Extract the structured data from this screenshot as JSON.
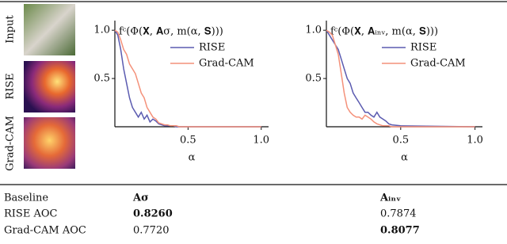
{
  "labels": {
    "input": "Input",
    "rise": "RISE",
    "gradcam": "Grad-CAM"
  },
  "chart_data": [
    {
      "type": "line",
      "title": "fᶜ(Φ(𝐗, 𝐀σ, m(α, 𝐒)))",
      "x_label": "α",
      "x": [
        0,
        0.02,
        0.04,
        0.06,
        0.08,
        0.1,
        0.12,
        0.14,
        0.16,
        0.18,
        0.2,
        0.22,
        0.24,
        0.26,
        0.28,
        0.3,
        0.32,
        0.34,
        0.36,
        0.38,
        0.4,
        0.42,
        0.44,
        0.5,
        1.0
      ],
      "series": [
        {
          "name": "RISE",
          "color": "#5b5bb0",
          "values": [
            1.0,
            0.95,
            0.8,
            0.6,
            0.45,
            0.3,
            0.2,
            0.15,
            0.1,
            0.15,
            0.08,
            0.12,
            0.05,
            0.08,
            0.06,
            0.03,
            0.02,
            0.01,
            0.01,
            0.01,
            0.01,
            0,
            0,
            0,
            0
          ]
        },
        {
          "name": "Grad-CAM",
          "color": "#f4917a",
          "values": [
            1.0,
            0.98,
            0.9,
            0.8,
            0.75,
            0.65,
            0.6,
            0.55,
            0.45,
            0.35,
            0.3,
            0.2,
            0.15,
            0.1,
            0.08,
            0.04,
            0.03,
            0.02,
            0.02,
            0.01,
            0.01,
            0.01,
            0,
            0,
            0
          ]
        }
      ],
      "xlim": [
        0,
        1.05
      ],
      "ylim": [
        0,
        1.1
      ],
      "xticks": [
        0.5,
        {
          "value": 1,
          "label": "1.0"
        }
      ],
      "yticks": [
        0.5,
        {
          "value": 1,
          "label": "1.0"
        }
      ]
    },
    {
      "type": "line",
      "title": "fᶜ(Φ(𝐗, 𝐀ᵢₙᵥ, m(α, 𝐒)))",
      "x_label": "α",
      "x": [
        0,
        0.02,
        0.04,
        0.06,
        0.08,
        0.1,
        0.12,
        0.14,
        0.16,
        0.18,
        0.2,
        0.22,
        0.24,
        0.26,
        0.28,
        0.3,
        0.32,
        0.34,
        0.36,
        0.38,
        0.4,
        0.42,
        0.44,
        0.5,
        1.0
      ],
      "series": [
        {
          "name": "RISE",
          "color": "#5b5bb0",
          "values": [
            1.0,
            0.95,
            0.9,
            0.85,
            0.8,
            0.7,
            0.6,
            0.5,
            0.45,
            0.35,
            0.3,
            0.25,
            0.2,
            0.15,
            0.15,
            0.12,
            0.1,
            0.15,
            0.1,
            0.08,
            0.06,
            0.03,
            0.02,
            0.01,
            0
          ]
        },
        {
          "name": "Grad-CAM",
          "color": "#f4917a",
          "values": [
            1.0,
            0.98,
            0.95,
            0.85,
            0.75,
            0.55,
            0.35,
            0.2,
            0.15,
            0.12,
            0.1,
            0.1,
            0.08,
            0.12,
            0.1,
            0.08,
            0.05,
            0.03,
            0.02,
            0.01,
            0.01,
            0.01,
            0,
            0,
            0
          ]
        }
      ],
      "xlim": [
        0,
        1.05
      ],
      "ylim": [
        0,
        1.1
      ],
      "xticks": [
        0.5,
        {
          "value": 1,
          "label": "1.0"
        }
      ],
      "yticks": [
        0.5,
        {
          "value": 1,
          "label": "1.0"
        }
      ]
    }
  ],
  "table": {
    "header": [
      "Baseline",
      "𝐀σ",
      "𝐀ᵢₙᵥ"
    ],
    "rows": [
      [
        "RISE AOC",
        "0.8260",
        "0.7874"
      ],
      [
        "Grad-CAM AOC",
        "0.7720",
        "0.8077"
      ]
    ]
  }
}
